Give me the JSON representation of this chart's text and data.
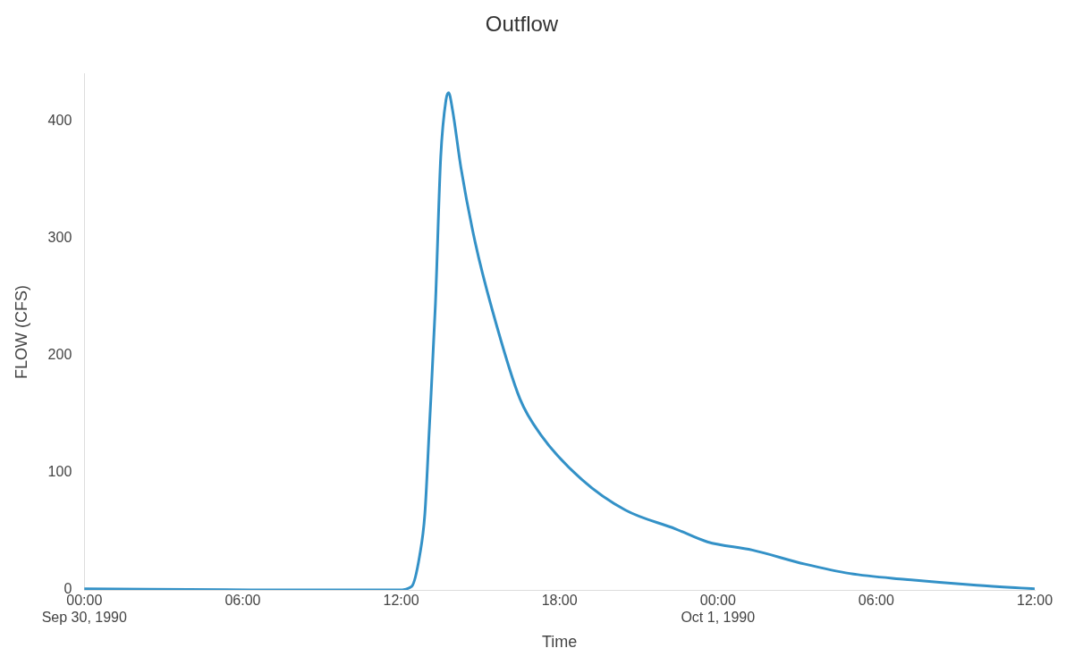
{
  "chart_data": {
    "type": "line",
    "title": "Outflow",
    "xlabel": "Time",
    "ylabel": "FLOW (CFS)",
    "x": [
      "1990-09-30T00:00",
      "1990-09-30T06:36",
      "1990-09-30T11:54",
      "1990-09-30T12:24",
      "1990-09-30T12:42",
      "1990-09-30T12:54",
      "1990-09-30T13:04",
      "1990-09-30T13:18",
      "1990-09-30T13:30",
      "1990-09-30T13:42",
      "1990-09-30T13:48",
      "1990-09-30T13:57",
      "1990-09-30T14:16",
      "1990-09-30T14:48",
      "1990-09-30T15:27",
      "1990-09-30T16:30",
      "1990-09-30T17:18",
      "1990-09-30T18:51",
      "1990-09-30T20:30",
      "1990-09-30T22:24",
      "1990-09-30T23:36",
      "1990-10-01T01:18",
      "1990-10-01T03:18",
      "1990-10-01T05:00",
      "1990-10-01T07:06",
      "1990-10-01T09:48",
      "1990-10-01T12:00"
    ],
    "series": [
      {
        "color": "#3391c7",
        "values": [
          1,
          0,
          0,
          3,
          29,
          65,
          137,
          244,
          369,
          418,
          424,
          409,
          360,
          297,
          239,
          163,
          132,
          94,
          68,
          52,
          41,
          34,
          22,
          14,
          9,
          4,
          1
        ]
      }
    ],
    "xlim": [
      "1990-09-30T00:00",
      "1990-10-01T12:00"
    ],
    "xticks": [
      {
        "value": "1990-09-30T00:00",
        "label": "00:00\nSep 30, 1990"
      },
      {
        "value": "1990-09-30T06:00",
        "label": "06:00"
      },
      {
        "value": "1990-09-30T12:00",
        "label": "12:00"
      },
      {
        "value": "1990-09-30T18:00",
        "label": "18:00"
      },
      {
        "value": "1990-10-01T00:00",
        "label": "00:00\nOct 1, 1990"
      },
      {
        "value": "1990-10-01T06:00",
        "label": "06:00"
      },
      {
        "value": "1990-10-01T12:00",
        "label": "12:00"
      }
    ],
    "ylim": [
      0,
      440
    ],
    "yticks": [
      0,
      100,
      200,
      300,
      400
    ],
    "grid": false,
    "legend": false,
    "marker": "none",
    "line_style": "solid"
  }
}
